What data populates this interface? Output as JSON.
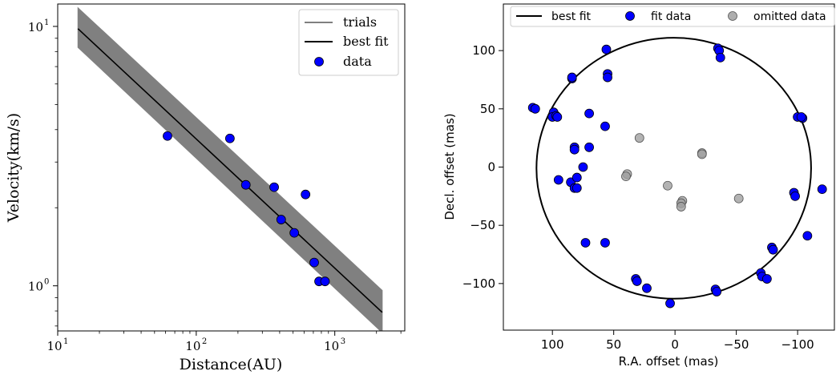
{
  "chart_data": [
    {
      "type": "scatter",
      "xscale": "log",
      "yscale": "log",
      "xlabel": "Distance(AU)",
      "ylabel": "Velocity(km/s)",
      "xlim": [
        10,
        3200
      ],
      "ylim": [
        0.67,
        12.2
      ],
      "x_ticks": [
        {
          "value": 10,
          "label": "10",
          "exp": "1"
        },
        {
          "value": 100,
          "label": "10",
          "exp": "2"
        },
        {
          "value": 1000,
          "label": "10",
          "exp": "3"
        }
      ],
      "y_ticks": [
        {
          "value": 1,
          "label": "10",
          "exp": "0"
        },
        {
          "value": 10,
          "label": "10",
          "exp": "1"
        }
      ],
      "legend_position": "top-right",
      "legend": [
        {
          "label": "trials",
          "kind": "line",
          "color": "#808080"
        },
        {
          "label": "best fit",
          "kind": "line",
          "color": "#000000"
        },
        {
          "label": "data",
          "kind": "marker",
          "color": "#0000ff"
        }
      ],
      "best_fit": {
        "x": [
          14,
          2200
        ],
        "y": [
          9.8,
          0.79
        ]
      },
      "trials_band": {
        "x": [
          14,
          2200
        ],
        "y_upper": [
          11.8,
          0.96
        ],
        "y_lower": [
          8.3,
          0.66
        ]
      },
      "series": [
        {
          "name": "data",
          "color": "#0000ff",
          "x": [
            62,
            175,
            228,
            365,
            410,
            510,
            615,
            710,
            770,
            850
          ],
          "y": [
            3.78,
            3.7,
            2.45,
            2.4,
            1.8,
            1.6,
            2.25,
            1.23,
            1.04,
            1.04
          ]
        }
      ]
    },
    {
      "type": "scatter",
      "xlabel": "R.A. offset (mas)",
      "ylabel": "Decl. offset (mas)",
      "xlim": [
        140,
        -130
      ],
      "ylim": [
        -140,
        140
      ],
      "x_ticks": [
        {
          "value": 100,
          "label": "100"
        },
        {
          "value": 50,
          "label": "50"
        },
        {
          "value": 0,
          "label": "0"
        },
        {
          "value": -50,
          "label": "−50"
        },
        {
          "value": -100,
          "label": "−100"
        }
      ],
      "y_ticks": [
        {
          "value": 100,
          "label": "100"
        },
        {
          "value": 50,
          "label": "50"
        },
        {
          "value": 0,
          "label": "0"
        },
        {
          "value": -50,
          "label": "−50"
        },
        {
          "value": -100,
          "label": "−100"
        }
      ],
      "legend_position": "top",
      "legend": [
        {
          "label": "best fit",
          "kind": "line",
          "color": "#000000"
        },
        {
          "label": "fit data",
          "kind": "marker",
          "color": "#0000ff"
        },
        {
          "label": "omitted data",
          "kind": "marker",
          "color": "#a0a0a0"
        }
      ],
      "best_fit_circle": {
        "center": [
          1,
          -1
        ],
        "radius": 112
      },
      "series": [
        {
          "name": "fit data",
          "color": "#0000ff",
          "x": [
            56,
            55,
            55,
            57,
            84,
            84,
            116,
            114,
            99,
            100,
            97,
            96,
            95,
            85,
            82,
            80,
            80,
            82,
            82,
            75,
            70,
            70,
            73,
            57,
            -35,
            -36,
            -37,
            -100,
            -104,
            -103,
            -97,
            -98,
            -120,
            -108,
            -70,
            -71,
            -75,
            -79,
            -80,
            -33,
            -34,
            32,
            31,
            23,
            4
          ],
          "y": [
            101,
            80,
            77,
            35,
            76,
            77,
            51,
            50,
            47,
            43,
            44,
            43,
            -11,
            -13,
            -18,
            -9,
            -18,
            17,
            15,
            0,
            46,
            17,
            -65,
            -65,
            102,
            100,
            94,
            43,
            42,
            43,
            -22,
            -25,
            -19,
            -59,
            -91,
            -94,
            -96,
            -69,
            -71,
            -105,
            -107,
            -96,
            -98,
            -104,
            -117
          ]
        },
        {
          "name": "omitted data",
          "color": "#a0a0a0",
          "x": [
            29,
            39,
            40,
            6,
            -22,
            -22,
            -52,
            -6,
            -5,
            -5
          ],
          "y": [
            25,
            -6,
            -8,
            -16,
            12,
            11,
            -27,
            -29,
            -31,
            -34
          ]
        }
      ]
    }
  ]
}
